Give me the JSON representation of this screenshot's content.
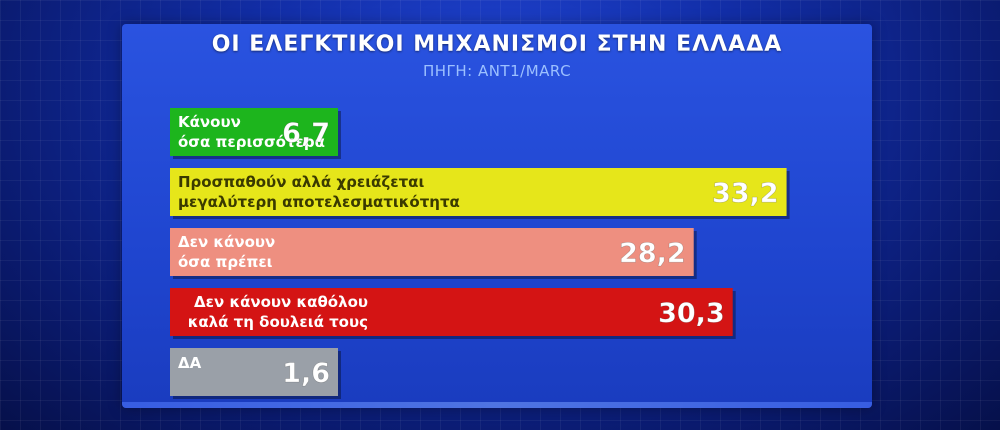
{
  "chart_data": {
    "type": "bar",
    "orientation": "horizontal",
    "title": "ΟΙ ΕΛΕΓΚΤΙΚΟΙ ΜΗΧΑΝΙΣΜΟΙ ΣΤΗΝ ΕΛΛΑΔΑ",
    "subtitle": "ΠΗΓΗ: ΑΝΤ1/MARC",
    "categories": [
      [
        "Κάνουν",
        "όσα περισσότερα"
      ],
      [
        "Προσπαθούν αλλά χρειάζεται",
        "μεγαλύτερη αποτελεσματικότητα"
      ],
      [
        "Δεν κάνουν",
        "όσα πρέπει"
      ],
      [
        "Δεν κάνουν καθόλου",
        "καλά τη δουλειά τους"
      ],
      [
        "ΔΑ"
      ]
    ],
    "values": [
      6.7,
      33.2,
      28.2,
      30.3,
      1.6
    ],
    "value_labels": [
      "6,7",
      "33,2",
      "28,2",
      "30,3",
      "1,6"
    ],
    "colors": [
      "#1db51d",
      "#e6e61a",
      "#ee8f80",
      "#d41414",
      "#9aa0a8"
    ],
    "label_colors": [
      "#ffffff",
      "#3a3a00",
      "#ffffff",
      "#ffffff",
      "#ffffff"
    ],
    "value_colors": [
      "#ffffff",
      "#ffffff",
      "#ffffff",
      "#ffffff",
      "#ffffff"
    ],
    "label_alignments": [
      "left",
      "left",
      "left",
      "right",
      "left"
    ],
    "xlim": [
      0,
      35
    ]
  }
}
